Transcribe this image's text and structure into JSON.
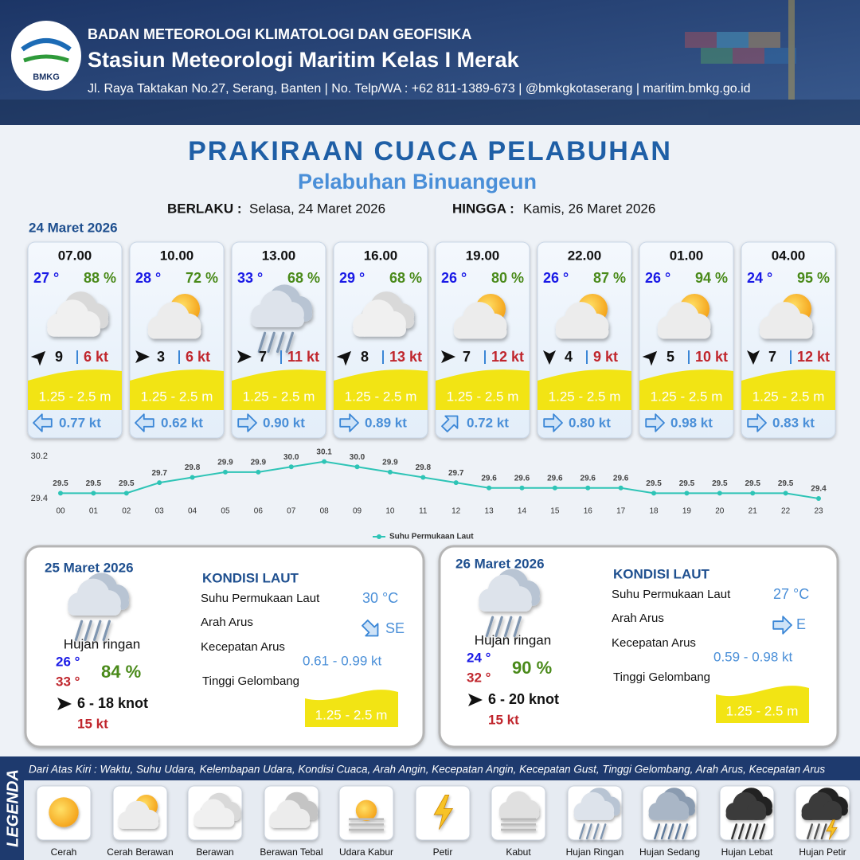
{
  "header": {
    "logo": "BMKG",
    "agency": "BADAN METEOROLOGI KLIMATOLOGI DAN GEOFISIKA",
    "station": "Stasiun Meteorologi Maritim Kelas I Merak",
    "address": "Jl. Raya Taktakan No.27, Serang, Banten | No. Telp/WA : +62 811-1389-673 | @bmkgkotaserang | maritim.bmkg.go.id"
  },
  "title": "PRAKIRAAN CUACA PELABUHAN",
  "subtitle": "Pelabuhan Binuangeun",
  "validity": {
    "from_label": "BERLAKU :",
    "from": "Selasa, 24 Maret 2026",
    "to_label": "HINGGA :",
    "to": "Kamis, 26 Maret 2026"
  },
  "today": {
    "date": "24 Maret 2026",
    "slots": [
      {
        "time": "07.00",
        "temp": "27 °",
        "humidity": "88 %",
        "wind": "9",
        "gust": "6 kt",
        "wave": "1.25 - 2.5 m",
        "current": "0.77 kt"
      },
      {
        "time": "10.00",
        "temp": "28 °",
        "humidity": "72 %",
        "wind": "3",
        "gust": "6 kt",
        "wave": "1.25 - 2.5 m",
        "current": "0.62 kt"
      },
      {
        "time": "13.00",
        "temp": "33 °",
        "humidity": "68 %",
        "wind": "7",
        "gust": "11 kt",
        "wave": "1.25 - 2.5 m",
        "current": "0.90 kt"
      },
      {
        "time": "16.00",
        "temp": "29 °",
        "humidity": "68 %",
        "wind": "8",
        "gust": "13 kt",
        "wave": "1.25 - 2.5 m",
        "current": "0.89 kt"
      },
      {
        "time": "19.00",
        "temp": "26 °",
        "humidity": "80 %",
        "wind": "7",
        "gust": "12 kt",
        "wave": "1.25 - 2.5 m",
        "current": "0.72 kt"
      },
      {
        "time": "22.00",
        "temp": "26 °",
        "humidity": "87 %",
        "wind": "4",
        "gust": "9 kt",
        "wave": "1.25 - 2.5 m",
        "current": "0.80 kt"
      },
      {
        "time": "01.00",
        "temp": "26 °",
        "humidity": "94 %",
        "wind": "5",
        "gust": "10 kt",
        "wave": "1.25 - 2.5 m",
        "current": "0.98 kt"
      },
      {
        "time": "04.00",
        "temp": "24 °",
        "humidity": "95 %",
        "wind": "7",
        "gust": "12 kt",
        "wave": "1.25 - 2.5 m",
        "current": "0.83 kt"
      }
    ]
  },
  "chart_data": {
    "type": "line",
    "categories": [
      "00",
      "01",
      "02",
      "03",
      "04",
      "05",
      "06",
      "07",
      "08",
      "09",
      "10",
      "11",
      "12",
      "13",
      "14",
      "15",
      "16",
      "17",
      "18",
      "19",
      "20",
      "21",
      "22",
      "23"
    ],
    "series": [
      {
        "name": "Suhu Permukaan Laut",
        "color": "#2ec4b6",
        "values": [
          29.5,
          29.5,
          29.5,
          29.7,
          29.8,
          29.9,
          29.9,
          30.0,
          30.1,
          30.0,
          29.9,
          29.8,
          29.7,
          29.6,
          29.6,
          29.6,
          29.6,
          29.6,
          29.5,
          29.5,
          29.5,
          29.5,
          29.5,
          29.4
        ],
        "value_labels": [
          "29.5",
          "29.5",
          "29.5",
          "29.7",
          "29.8",
          "29.9",
          "29.9",
          "30.0",
          "30.1",
          "30.0",
          "29.9",
          "29.8",
          "29.7",
          "29.6",
          "29.6",
          "29.6",
          "29.6",
          "29.6",
          "29.5",
          "29.5",
          "29.5",
          "29.5",
          "29.5",
          "29.4"
        ]
      }
    ],
    "ylim": [
      29.4,
      30.2
    ],
    "yticks": [
      29.4,
      30.2
    ]
  },
  "outlook": [
    {
      "date": "25 Maret 2026",
      "condition": "Hujan ringan",
      "temp_min": "26 °",
      "temp_max": "33 °",
      "humidity": "84 %",
      "wind": "6  - 18 knot",
      "gust": "15 kt",
      "sea": {
        "heading": "KONDISI LAUT",
        "sst_label": "Suhu Permukaan Laut",
        "sst": "30 °C",
        "current_dir_label": "Arah Arus",
        "current_dir": "SE",
        "current_speed_label": "Kecepatan Arus",
        "current_speed": "0.61 - 0.99 kt",
        "wave_label": "Tinggi Gelombang",
        "wave": "1.25 - 2.5 m"
      }
    },
    {
      "date": "26 Maret 2026",
      "condition": "Hujan ringan",
      "temp_min": "24 °",
      "temp_max": "32 °",
      "humidity": "90 %",
      "wind": "6 - 20 knot",
      "gust": "15 kt",
      "sea": {
        "heading": "KONDISI LAUT",
        "sst_label": "Suhu Permukaan Laut",
        "sst": "27 °C",
        "current_dir_label": "Arah Arus",
        "current_dir": "E",
        "current_speed_label": "Kecepatan Arus",
        "current_speed": "0.59 - 0.98 kt",
        "wave_label": "Tinggi Gelombang",
        "wave": "1.25 - 2.5 m"
      }
    }
  ],
  "legend": {
    "title": "LEGENDA",
    "note": "Dari Atas Kiri : Waktu, Suhu Udara, Kelembapan Udara, Kondisi Cuaca, Arah Angin, Kecepatan Angin, Kecepatan Gust, Tinggi Gelombang, Arah Arus, Kecepatan Arus",
    "items": [
      "Cerah",
      "Cerah Berawan",
      "Berawan",
      "Berawan Tebal",
      "Udara Kabur",
      "Petir",
      "Kabut",
      "Hujan Ringan",
      "Hujan Sedang",
      "Hujan Lebat",
      "Hujan Petir"
    ]
  }
}
